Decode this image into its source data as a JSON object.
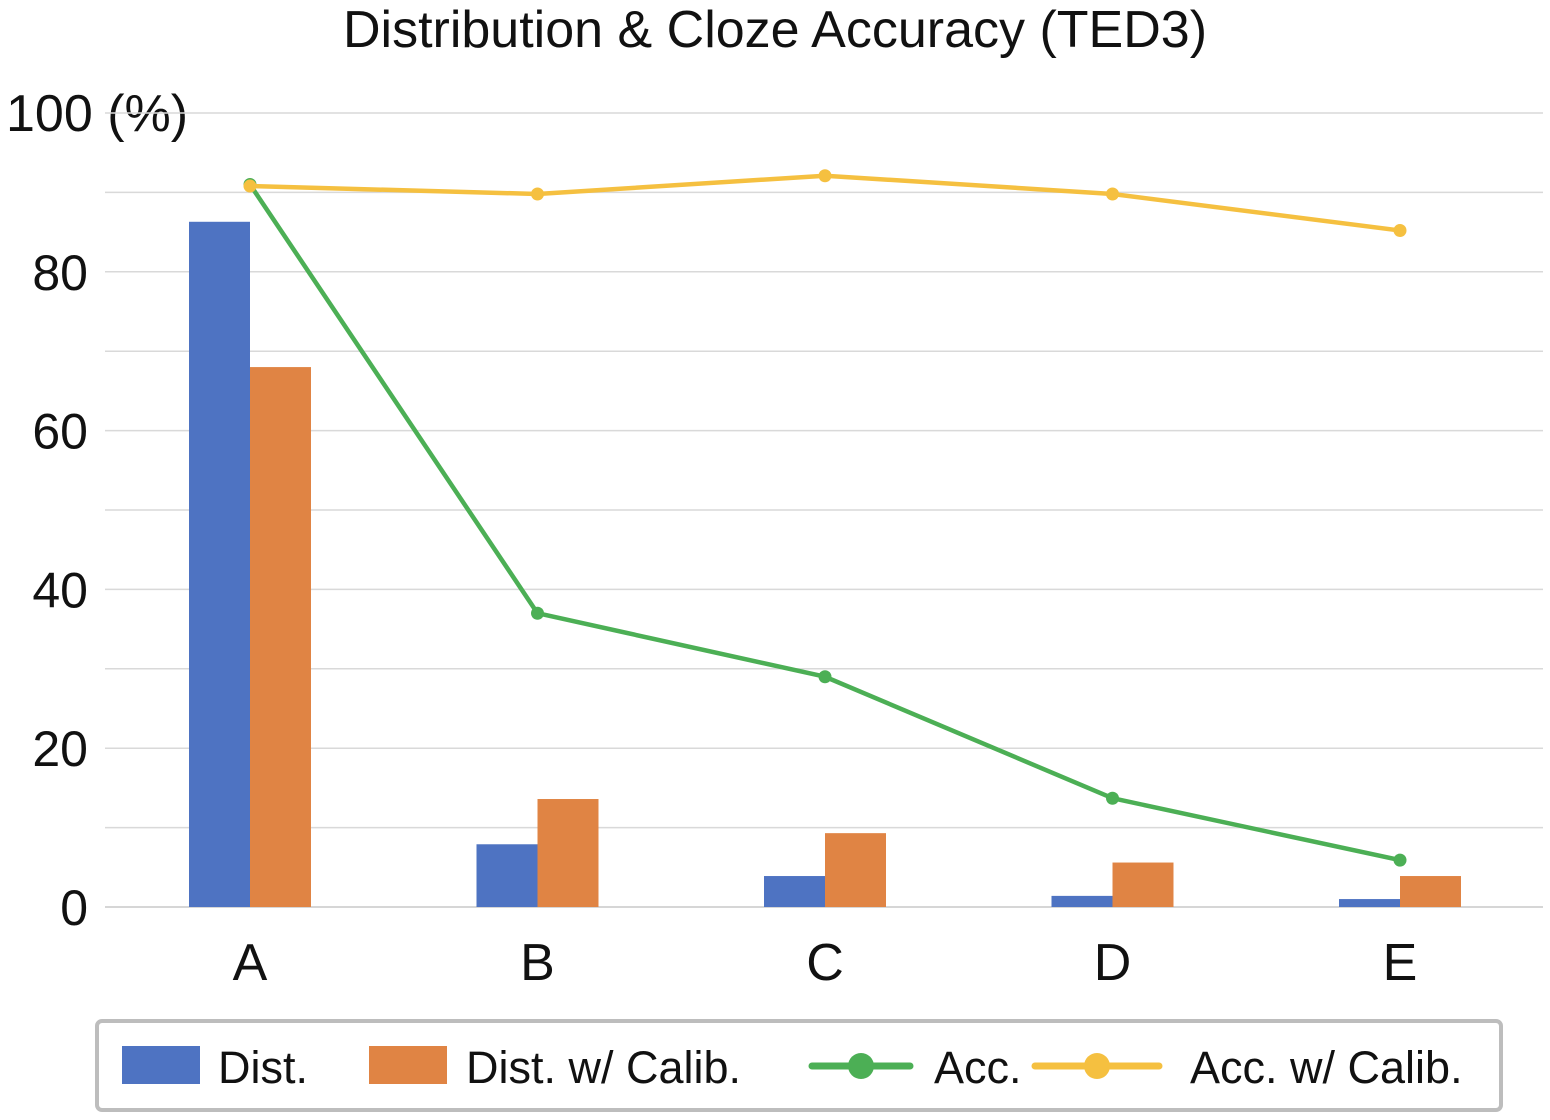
{
  "chart_data": {
    "type": "bar",
    "title": "Distribution & Cloze Accuracy (TED3)",
    "ylabel": "100 (%)",
    "xlabel": "",
    "ylim": [
      0,
      100
    ],
    "yticks": [
      0,
      20,
      40,
      60,
      80
    ],
    "minor_gridlines": [
      10,
      30,
      50,
      70,
      90
    ],
    "grid": true,
    "legend_position": "bottom",
    "categories": [
      "A",
      "B",
      "C",
      "D",
      "E"
    ],
    "series": [
      {
        "name": "Dist.",
        "type": "bar",
        "color": "#4e73c2",
        "values": [
          86.3,
          7.9,
          3.9,
          1.4,
          1.0
        ]
      },
      {
        "name": "Dist. w/ Calib.",
        "type": "bar",
        "color": "#e08444",
        "values": [
          68.0,
          13.6,
          9.3,
          5.6,
          3.9
        ]
      },
      {
        "name": "Acc.",
        "type": "line",
        "color": "#4caf55",
        "values": [
          91.0,
          37.0,
          29.0,
          13.7,
          5.9
        ]
      },
      {
        "name": "Acc. w/ Calib.",
        "type": "line",
        "color": "#f5c040",
        "values": [
          90.8,
          89.8,
          92.1,
          89.8,
          85.2
        ]
      }
    ]
  }
}
